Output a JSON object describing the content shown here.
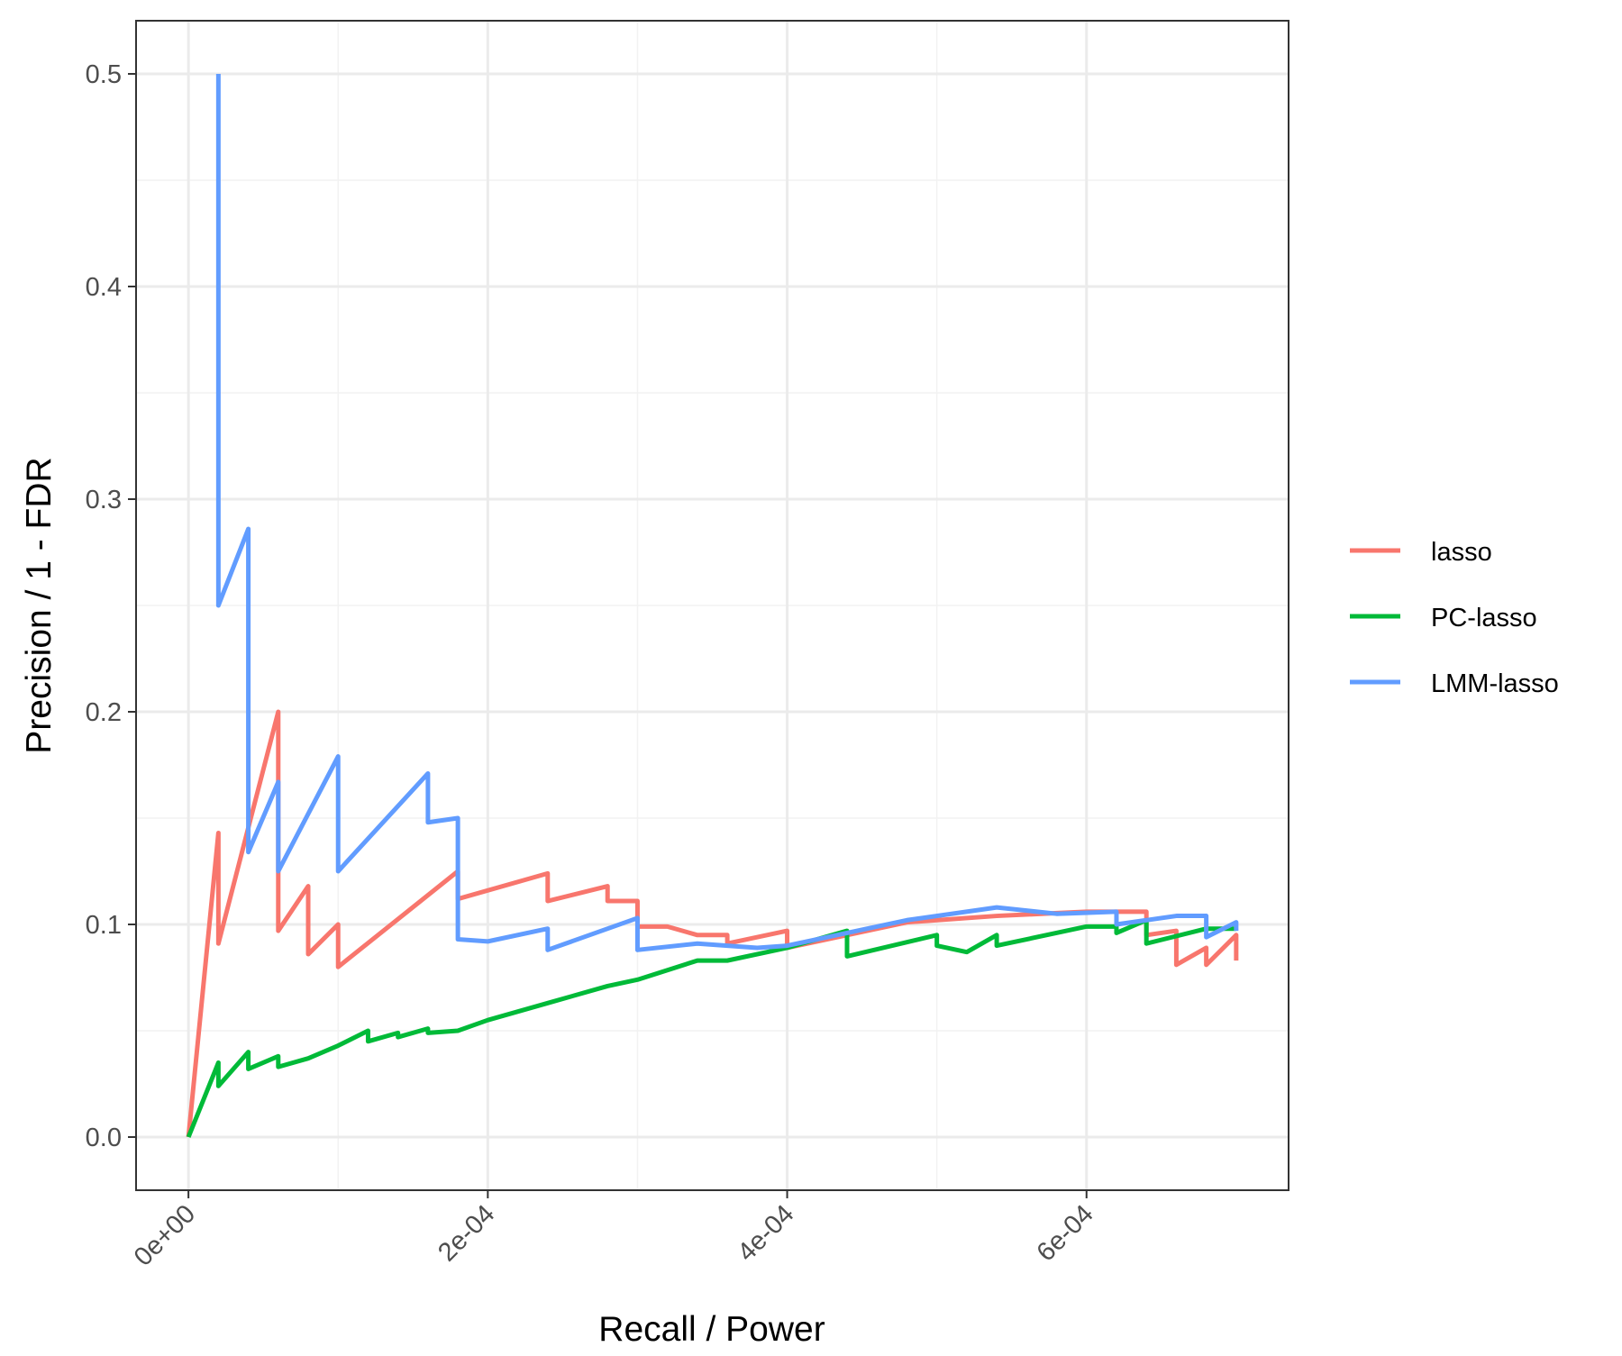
{
  "chart_data": {
    "type": "line",
    "title": "",
    "xlabel": "Recall / Power",
    "ylabel": "Precision / 1 - FDR",
    "xlim": [
      -3.5e-05,
      0.000735
    ],
    "ylim": [
      -0.025,
      0.525
    ],
    "x_ticks": [
      {
        "value": 0,
        "label": "0e+00"
      },
      {
        "value": 0.0002,
        "label": "2e-04"
      },
      {
        "value": 0.0004,
        "label": "4e-04"
      },
      {
        "value": 0.0006,
        "label": "6e-04"
      }
    ],
    "y_ticks": [
      {
        "value": 0.0,
        "label": "0.0"
      },
      {
        "value": 0.1,
        "label": "0.1"
      },
      {
        "value": 0.2,
        "label": "0.2"
      },
      {
        "value": 0.3,
        "label": "0.3"
      },
      {
        "value": 0.4,
        "label": "0.4"
      },
      {
        "value": 0.5,
        "label": "0.5"
      }
    ],
    "grid": true,
    "legend_position": "right",
    "series": [
      {
        "name": "lasso",
        "color": "#F8766D",
        "points": [
          [
            0,
            0
          ],
          [
            2e-05,
            0.143
          ],
          [
            2e-05,
            0.091
          ],
          [
            6e-05,
            0.2
          ],
          [
            6e-05,
            0.097
          ],
          [
            8e-05,
            0.118
          ],
          [
            8e-05,
            0.086
          ],
          [
            0.0001,
            0.1
          ],
          [
            0.0001,
            0.08
          ],
          [
            0.00018,
            0.125
          ],
          [
            0.00018,
            0.112
          ],
          [
            0.00024,
            0.124
          ],
          [
            0.00024,
            0.111
          ],
          [
            0.00028,
            0.118
          ],
          [
            0.00028,
            0.111
          ],
          [
            0.0003,
            0.111
          ],
          [
            0.0003,
            0.099
          ],
          [
            0.00032,
            0.099
          ],
          [
            0.00034,
            0.095
          ],
          [
            0.00036,
            0.095
          ],
          [
            0.00036,
            0.091
          ],
          [
            0.0004,
            0.097
          ],
          [
            0.0004,
            0.089
          ],
          [
            0.00048,
            0.101
          ],
          [
            0.00054,
            0.104
          ],
          [
            0.0006,
            0.106
          ],
          [
            0.00064,
            0.106
          ],
          [
            0.00064,
            0.095
          ],
          [
            0.00066,
            0.097
          ],
          [
            0.00066,
            0.081
          ],
          [
            0.00068,
            0.089
          ],
          [
            0.00068,
            0.081
          ],
          [
            0.0007,
            0.095
          ],
          [
            0.0007,
            0.083
          ]
        ]
      },
      {
        "name": "PC-lasso",
        "color": "#00BA38",
        "points": [
          [
            0,
            0
          ],
          [
            2e-05,
            0.035
          ],
          [
            2e-05,
            0.024
          ],
          [
            4e-05,
            0.04
          ],
          [
            4e-05,
            0.032
          ],
          [
            6e-05,
            0.038
          ],
          [
            6e-05,
            0.033
          ],
          [
            8e-05,
            0.037
          ],
          [
            0.0001,
            0.043
          ],
          [
            0.00012,
            0.05
          ],
          [
            0.00012,
            0.045
          ],
          [
            0.00014,
            0.049
          ],
          [
            0.00014,
            0.047
          ],
          [
            0.00016,
            0.051
          ],
          [
            0.00016,
            0.049
          ],
          [
            0.00018,
            0.05
          ],
          [
            0.0002,
            0.055
          ],
          [
            0.00024,
            0.063
          ],
          [
            0.00028,
            0.071
          ],
          [
            0.0003,
            0.074
          ],
          [
            0.00034,
            0.083
          ],
          [
            0.00036,
            0.083
          ],
          [
            0.0004,
            0.089
          ],
          [
            0.00044,
            0.097
          ],
          [
            0.00044,
            0.085
          ],
          [
            0.0005,
            0.095
          ],
          [
            0.0005,
            0.09
          ],
          [
            0.00052,
            0.087
          ],
          [
            0.00054,
            0.095
          ],
          [
            0.00054,
            0.09
          ],
          [
            0.0006,
            0.099
          ],
          [
            0.00062,
            0.099
          ],
          [
            0.00062,
            0.096
          ],
          [
            0.00064,
            0.102
          ],
          [
            0.00064,
            0.091
          ],
          [
            0.00068,
            0.098
          ],
          [
            0.0007,
            0.098
          ]
        ]
      },
      {
        "name": "LMM-lasso",
        "color": "#619CFF",
        "points": [
          [
            2e-05,
            0.5
          ],
          [
            2e-05,
            0.25
          ],
          [
            4e-05,
            0.286
          ],
          [
            4e-05,
            0.134
          ],
          [
            6e-05,
            0.167
          ],
          [
            6e-05,
            0.125
          ],
          [
            0.0001,
            0.179
          ],
          [
            0.0001,
            0.125
          ],
          [
            0.00016,
            0.171
          ],
          [
            0.00016,
            0.148
          ],
          [
            0.00018,
            0.15
          ],
          [
            0.00018,
            0.093
          ],
          [
            0.0002,
            0.092
          ],
          [
            0.00024,
            0.098
          ],
          [
            0.00024,
            0.088
          ],
          [
            0.0003,
            0.103
          ],
          [
            0.0003,
            0.088
          ],
          [
            0.00034,
            0.091
          ],
          [
            0.00038,
            0.089
          ],
          [
            0.0004,
            0.09
          ],
          [
            0.00048,
            0.102
          ],
          [
            0.00054,
            0.108
          ],
          [
            0.00058,
            0.105
          ],
          [
            0.00062,
            0.106
          ],
          [
            0.00062,
            0.1
          ],
          [
            0.00066,
            0.104
          ],
          [
            0.00068,
            0.104
          ],
          [
            0.00068,
            0.094
          ],
          [
            0.0007,
            0.101
          ],
          [
            0.0007,
            0.097
          ]
        ]
      }
    ]
  }
}
